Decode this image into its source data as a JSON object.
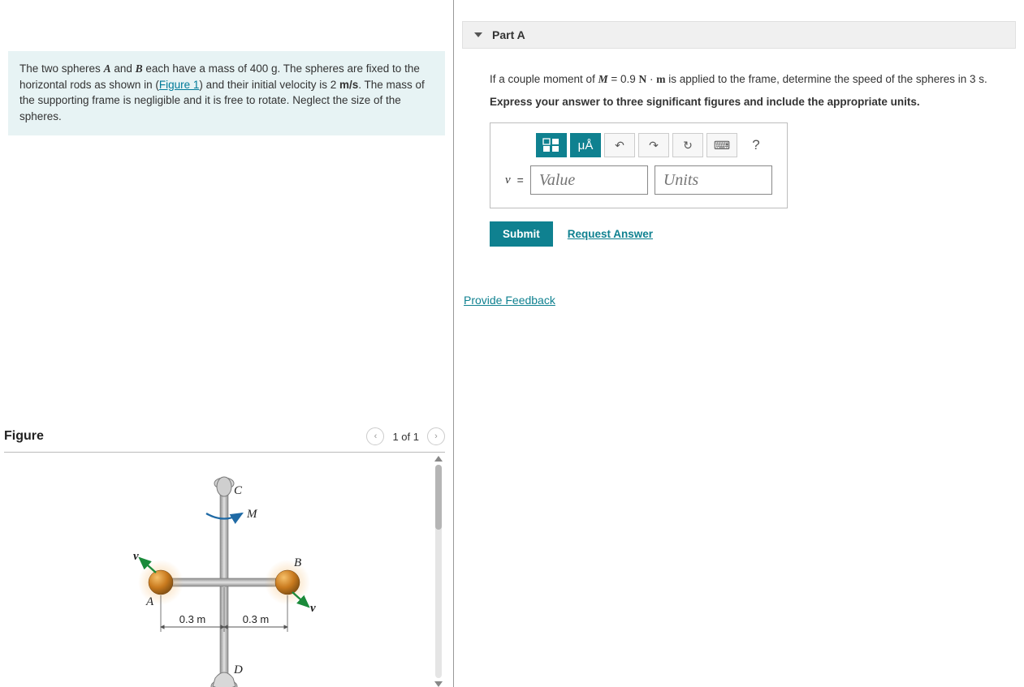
{
  "problem": {
    "text_parts": {
      "p1": "The two spheres ",
      "A": "A",
      "p2": " and ",
      "B": "B",
      "p3": " each have a mass of 400 g. The spheres are fixed to the horizontal rods as shown in (",
      "fig_link": "Figure 1",
      "p4": ") and their initial velocity is 2 ",
      "unit_ms": "m/s",
      "p5": ". The mass of the supporting frame is negligible and it is free to rotate. Neglect the size of the spheres."
    }
  },
  "figure": {
    "title": "Figure",
    "nav": {
      "prev": "‹",
      "next": "›",
      "counter": "1 of 1"
    },
    "labels": {
      "A": "A",
      "B": "B",
      "C": "C",
      "D": "D",
      "M": "M",
      "v": "v"
    },
    "dims": {
      "left": "0.3 m",
      "right": "0.3 m"
    },
    "colors": {
      "rod": "#b8b8b8",
      "rod_edge": "#7a7a7a",
      "sphere_fill": "#c97a1e",
      "sphere_hi": "#f6c06a",
      "sphere_glow": "#f3b25a",
      "arrow": "#1a8a3a",
      "rot_arrow": "#1f6aa5",
      "text": "#222222",
      "dim_line": "#555555"
    }
  },
  "partA": {
    "header": "Part A",
    "q_parts": {
      "p1": "If a couple moment of ",
      "M": "M",
      "eq": " = 0.9 ",
      "N": "N",
      "dot": " · ",
      "m": "m",
      "p2": " is applied to the frame, determine the speed of the spheres in 3 s."
    },
    "instruction": "Express your answer to three significant figures and include the appropriate units.",
    "toolbar": {
      "templates": "▫▫",
      "units_btn": "μÅ",
      "undo": "↶",
      "redo": "↷",
      "reset": "↻",
      "keyboard": "⌨",
      "help": "?"
    },
    "var": "v",
    "equals": "=",
    "value_placeholder": "Value",
    "units_placeholder": "Units",
    "submit": "Submit",
    "request_answer": "Request Answer"
  },
  "feedback": "Provide Feedback"
}
